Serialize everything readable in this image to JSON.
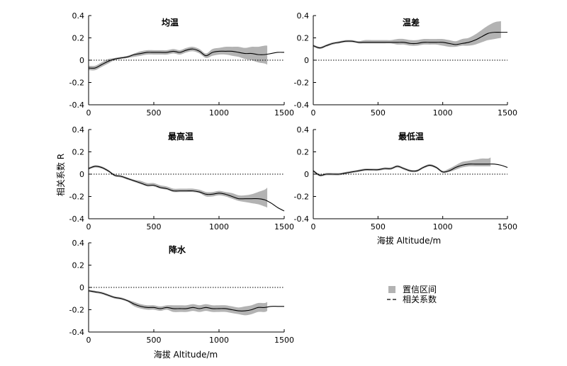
{
  "figure": {
    "ylabel": "相关系数 R",
    "xlabel": "海拔 Altitude/m",
    "legend": {
      "band": "置信区间",
      "line": "相关系数"
    },
    "colors": {
      "band": "#b3b3b3",
      "line": "#000000",
      "zero_line": "#000000"
    }
  },
  "chart_data": [
    {
      "type": "line",
      "title": "均温",
      "xlim": [
        0,
        1500
      ],
      "ylim": [
        -0.4,
        0.4
      ],
      "x_ticks": [
        0,
        500,
        1000,
        1500
      ],
      "y_ticks": [
        -0.4,
        -0.2,
        0,
        0.2,
        0.4
      ],
      "x": [
        0,
        50,
        100,
        150,
        200,
        250,
        300,
        350,
        400,
        450,
        500,
        550,
        600,
        650,
        700,
        750,
        800,
        850,
        900,
        950,
        1000,
        1050,
        1100,
        1150,
        1200,
        1250,
        1300,
        1350,
        1400,
        1450,
        1500
      ],
      "values": [
        -0.07,
        -0.07,
        -0.04,
        -0.01,
        0.01,
        0.02,
        0.03,
        0.05,
        0.06,
        0.07,
        0.07,
        0.07,
        0.07,
        0.08,
        0.07,
        0.09,
        0.1,
        0.08,
        0.04,
        0.07,
        0.08,
        0.08,
        0.08,
        0.07,
        0.06,
        0.06,
        0.05,
        0.05,
        0.06,
        0.07,
        0.07
      ],
      "band_x": [
        0,
        50,
        100,
        150,
        200,
        250,
        300,
        350,
        400,
        450,
        500,
        550,
        600,
        650,
        700,
        750,
        800,
        850,
        900,
        950,
        1000,
        1050,
        1100,
        1150,
        1200,
        1250,
        1300,
        1350,
        1370
      ],
      "band_lower": [
        -0.09,
        -0.09,
        -0.06,
        -0.03,
        0.0,
        0.01,
        0.02,
        0.03,
        0.04,
        0.05,
        0.05,
        0.05,
        0.05,
        0.06,
        0.05,
        0.07,
        0.08,
        0.06,
        0.02,
        0.04,
        0.05,
        0.05,
        0.04,
        0.03,
        0.01,
        0.0,
        -0.02,
        -0.03,
        -0.04
      ],
      "band_upper": [
        -0.05,
        -0.05,
        -0.02,
        0.01,
        0.02,
        0.03,
        0.04,
        0.06,
        0.08,
        0.09,
        0.09,
        0.09,
        0.09,
        0.1,
        0.09,
        0.11,
        0.12,
        0.1,
        0.06,
        0.1,
        0.11,
        0.12,
        0.12,
        0.12,
        0.11,
        0.12,
        0.12,
        0.13,
        0.13
      ]
    },
    {
      "type": "line",
      "title": "温差",
      "xlim": [
        0,
        1500
      ],
      "ylim": [
        -0.4,
        0.4
      ],
      "x_ticks": [
        0,
        500,
        1000,
        1500
      ],
      "y_ticks": [
        -0.4,
        -0.2,
        0,
        0.2,
        0.4
      ],
      "x": [
        0,
        50,
        100,
        150,
        200,
        250,
        300,
        350,
        400,
        450,
        500,
        550,
        600,
        650,
        700,
        750,
        800,
        850,
        900,
        950,
        1000,
        1050,
        1100,
        1150,
        1200,
        1250,
        1300,
        1350,
        1400,
        1450,
        1500
      ],
      "values": [
        0.13,
        0.11,
        0.13,
        0.15,
        0.16,
        0.17,
        0.17,
        0.16,
        0.16,
        0.16,
        0.16,
        0.16,
        0.16,
        0.16,
        0.16,
        0.15,
        0.15,
        0.16,
        0.16,
        0.16,
        0.16,
        0.15,
        0.14,
        0.15,
        0.16,
        0.18,
        0.21,
        0.24,
        0.25,
        0.25,
        0.25
      ],
      "band_x": [
        0,
        50,
        100,
        150,
        200,
        250,
        300,
        350,
        400,
        450,
        500,
        550,
        600,
        650,
        700,
        750,
        800,
        850,
        900,
        950,
        1000,
        1050,
        1100,
        1150,
        1200,
        1250,
        1300,
        1350,
        1400,
        1450
      ],
      "band_lower": [
        0.12,
        0.1,
        0.12,
        0.14,
        0.15,
        0.16,
        0.16,
        0.15,
        0.15,
        0.15,
        0.15,
        0.15,
        0.15,
        0.14,
        0.14,
        0.13,
        0.13,
        0.14,
        0.14,
        0.14,
        0.13,
        0.12,
        0.12,
        0.13,
        0.13,
        0.14,
        0.16,
        0.18,
        0.19,
        0.2
      ],
      "band_upper": [
        0.14,
        0.12,
        0.14,
        0.16,
        0.17,
        0.18,
        0.18,
        0.17,
        0.18,
        0.18,
        0.18,
        0.18,
        0.18,
        0.19,
        0.19,
        0.18,
        0.18,
        0.19,
        0.19,
        0.19,
        0.19,
        0.18,
        0.17,
        0.19,
        0.2,
        0.23,
        0.27,
        0.31,
        0.34,
        0.35
      ]
    },
    {
      "type": "line",
      "title": "最高温",
      "xlim": [
        0,
        1500
      ],
      "ylim": [
        -0.4,
        0.4
      ],
      "x_ticks": [
        0,
        500,
        1000,
        1500
      ],
      "y_ticks": [
        -0.4,
        -0.2,
        0,
        0.2,
        0.4
      ],
      "x": [
        0,
        50,
        100,
        150,
        200,
        250,
        300,
        350,
        400,
        450,
        500,
        550,
        600,
        650,
        700,
        750,
        800,
        850,
        900,
        950,
        1000,
        1050,
        1100,
        1150,
        1200,
        1250,
        1300,
        1350,
        1400,
        1450,
        1500
      ],
      "values": [
        0.05,
        0.07,
        0.06,
        0.03,
        -0.01,
        -0.02,
        -0.04,
        -0.06,
        -0.08,
        -0.1,
        -0.1,
        -0.12,
        -0.13,
        -0.15,
        -0.15,
        -0.15,
        -0.15,
        -0.16,
        -0.18,
        -0.18,
        -0.17,
        -0.18,
        -0.2,
        -0.22,
        -0.22,
        -0.22,
        -0.22,
        -0.23,
        -0.26,
        -0.3,
        -0.33
      ],
      "band_x": [
        0,
        50,
        100,
        150,
        200,
        250,
        300,
        350,
        400,
        450,
        500,
        550,
        600,
        650,
        700,
        750,
        800,
        850,
        900,
        950,
        1000,
        1050,
        1100,
        1150,
        1200,
        1250,
        1300,
        1350,
        1370
      ],
      "band_lower": [
        0.04,
        0.06,
        0.05,
        0.02,
        -0.02,
        -0.03,
        -0.05,
        -0.07,
        -0.09,
        -0.11,
        -0.11,
        -0.13,
        -0.14,
        -0.16,
        -0.16,
        -0.16,
        -0.16,
        -0.17,
        -0.2,
        -0.2,
        -0.19,
        -0.2,
        -0.22,
        -0.24,
        -0.25,
        -0.26,
        -0.27,
        -0.29,
        -0.3
      ],
      "band_upper": [
        0.06,
        0.08,
        0.07,
        0.04,
        0.0,
        -0.01,
        -0.03,
        -0.05,
        -0.06,
        -0.08,
        -0.08,
        -0.1,
        -0.11,
        -0.13,
        -0.13,
        -0.13,
        -0.13,
        -0.14,
        -0.16,
        -0.16,
        -0.15,
        -0.16,
        -0.17,
        -0.19,
        -0.19,
        -0.18,
        -0.16,
        -0.14,
        -0.12
      ]
    },
    {
      "type": "line",
      "title": "最低温",
      "xlim": [
        0,
        1500
      ],
      "ylim": [
        -0.4,
        0.4
      ],
      "x_ticks": [
        0,
        500,
        1000,
        1500
      ],
      "y_ticks": [
        -0.4,
        -0.2,
        0,
        0.2,
        0.4
      ],
      "x": [
        0,
        50,
        100,
        150,
        200,
        250,
        300,
        350,
        400,
        450,
        500,
        550,
        600,
        650,
        700,
        750,
        800,
        850,
        900,
        950,
        1000,
        1050,
        1100,
        1150,
        1200,
        1250,
        1300,
        1350,
        1400,
        1450,
        1500
      ],
      "values": [
        0.03,
        -0.01,
        0.0,
        0.0,
        0.0,
        0.01,
        0.02,
        0.03,
        0.04,
        0.04,
        0.04,
        0.05,
        0.05,
        0.07,
        0.05,
        0.03,
        0.03,
        0.06,
        0.08,
        0.06,
        0.02,
        0.03,
        0.06,
        0.08,
        0.09,
        0.09,
        0.09,
        0.09,
        0.09,
        0.08,
        0.06
      ],
      "band_x": [
        0,
        50,
        100,
        150,
        200,
        250,
        300,
        350,
        400,
        450,
        500,
        550,
        600,
        650,
        700,
        750,
        800,
        850,
        900,
        950,
        1000,
        1050,
        1100,
        1150,
        1200,
        1250,
        1300,
        1350,
        1370
      ],
      "band_lower": [
        0.02,
        -0.02,
        -0.01,
        -0.01,
        -0.01,
        0.0,
        0.01,
        0.02,
        0.03,
        0.03,
        0.03,
        0.04,
        0.04,
        0.06,
        0.04,
        0.02,
        0.02,
        0.05,
        0.07,
        0.05,
        0.01,
        0.02,
        0.04,
        0.06,
        0.07,
        0.07,
        0.07,
        0.07,
        0.07
      ],
      "band_upper": [
        0.04,
        0.0,
        0.01,
        0.01,
        0.01,
        0.02,
        0.03,
        0.04,
        0.05,
        0.05,
        0.05,
        0.06,
        0.06,
        0.08,
        0.06,
        0.04,
        0.04,
        0.07,
        0.09,
        0.07,
        0.03,
        0.05,
        0.08,
        0.11,
        0.12,
        0.13,
        0.14,
        0.14,
        0.15
      ]
    },
    {
      "type": "line",
      "title": "降水",
      "xlim": [
        0,
        1500
      ],
      "ylim": [
        -0.4,
        0.4
      ],
      "x_ticks": [
        0,
        500,
        1000,
        1500
      ],
      "y_ticks": [
        -0.4,
        -0.2,
        0,
        0.2,
        0.4
      ],
      "x": [
        0,
        50,
        100,
        150,
        200,
        250,
        300,
        350,
        400,
        450,
        500,
        550,
        600,
        650,
        700,
        750,
        800,
        850,
        900,
        950,
        1000,
        1050,
        1100,
        1150,
        1200,
        1250,
        1300,
        1350,
        1400,
        1450,
        1500
      ],
      "values": [
        -0.03,
        -0.04,
        -0.05,
        -0.07,
        -0.09,
        -0.1,
        -0.12,
        -0.15,
        -0.17,
        -0.18,
        -0.18,
        -0.19,
        -0.18,
        -0.19,
        -0.19,
        -0.19,
        -0.18,
        -0.19,
        -0.18,
        -0.19,
        -0.19,
        -0.19,
        -0.2,
        -0.21,
        -0.21,
        -0.2,
        -0.18,
        -0.18,
        -0.17,
        -0.17,
        -0.17
      ],
      "band_x": [
        0,
        50,
        100,
        150,
        200,
        250,
        300,
        350,
        400,
        450,
        500,
        550,
        600,
        650,
        700,
        750,
        800,
        850,
        900,
        950,
        1000,
        1050,
        1100,
        1150,
        1200,
        1250,
        1300,
        1350,
        1370
      ],
      "band_lower": [
        -0.04,
        -0.05,
        -0.06,
        -0.08,
        -0.1,
        -0.11,
        -0.13,
        -0.17,
        -0.19,
        -0.2,
        -0.2,
        -0.21,
        -0.2,
        -0.22,
        -0.22,
        -0.22,
        -0.21,
        -0.22,
        -0.21,
        -0.22,
        -0.22,
        -0.22,
        -0.23,
        -0.24,
        -0.25,
        -0.24,
        -0.22,
        -0.22,
        -0.21
      ],
      "band_upper": [
        -0.02,
        -0.03,
        -0.04,
        -0.06,
        -0.08,
        -0.09,
        -0.11,
        -0.13,
        -0.15,
        -0.16,
        -0.16,
        -0.17,
        -0.16,
        -0.16,
        -0.16,
        -0.16,
        -0.15,
        -0.16,
        -0.15,
        -0.16,
        -0.16,
        -0.16,
        -0.17,
        -0.18,
        -0.17,
        -0.16,
        -0.14,
        -0.14,
        -0.13
      ]
    }
  ]
}
